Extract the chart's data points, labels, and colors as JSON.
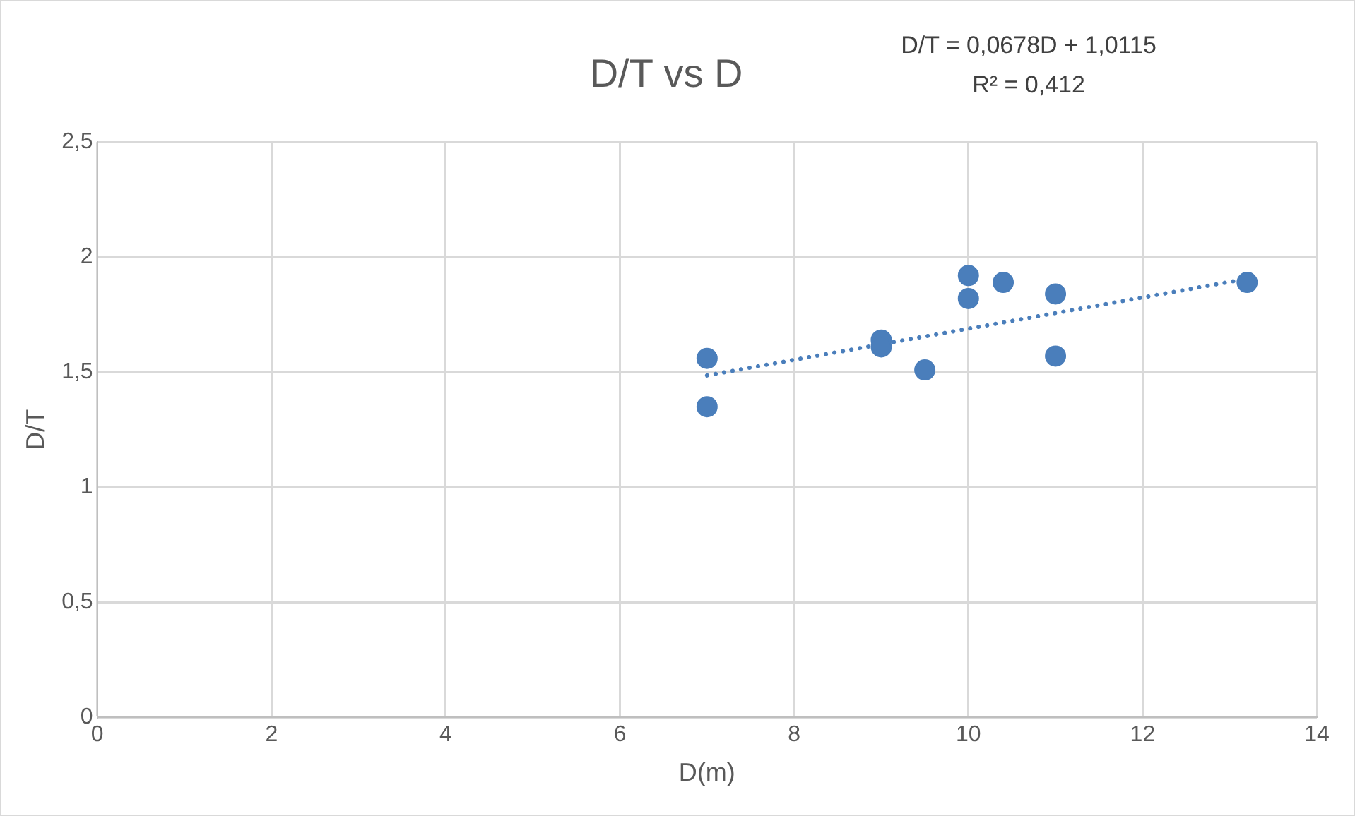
{
  "chart_data": {
    "type": "scatter",
    "title": "D/T vs D",
    "xlabel": "D(m)",
    "ylabel": "D/T",
    "annotations": [
      "D/T = 0,0678D + 1,0115",
      "R² = 0,412"
    ],
    "series": [
      {
        "color": "#4a7ebb",
        "x": [
          7,
          7,
          9,
          9,
          9.5,
          10,
          10,
          10.4,
          11,
          11,
          13.2
        ],
        "values": [
          1.56,
          1.35,
          1.64,
          1.61,
          1.51,
          1.92,
          1.82,
          1.89,
          1.84,
          1.57,
          1.89
        ],
        "marker": "circle"
      },
      {
        "type": "line",
        "color": "#4a7ebb",
        "x": [
          7,
          13.2
        ],
        "values": [
          1.486,
          1.906
        ],
        "marker": "none",
        "line_style": "dotted"
      }
    ],
    "xlim": [
      0,
      14
    ],
    "xticks": [
      0,
      2,
      4,
      6,
      8,
      10,
      12,
      14
    ],
    "ylim": [
      0,
      2.5
    ],
    "yticks": [
      0,
      {
        "value": 0.5,
        "label": "0,5"
      },
      1,
      {
        "value": 1.5,
        "label": "1,5"
      },
      2,
      {
        "value": 2.5,
        "label": "2,5"
      }
    ],
    "grid": true,
    "legend": false
  }
}
